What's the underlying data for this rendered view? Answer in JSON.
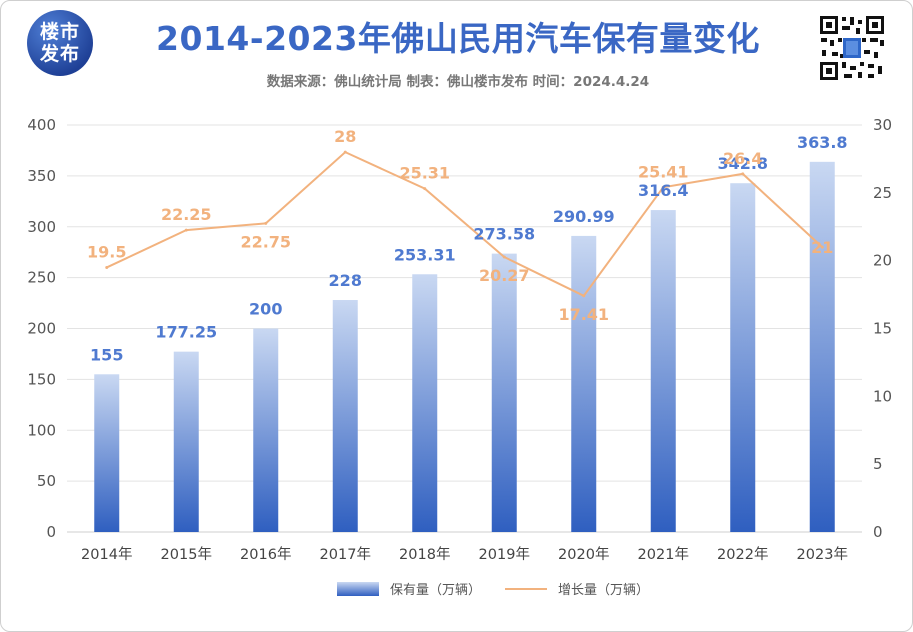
{
  "header": {
    "logo_line1": "楼市",
    "logo_line2": "发布",
    "title": "2014-2023年佛山民用汽车保有量变化",
    "subtitle": "数据来源：佛山统计局 制表：佛山楼市发布 时间：2024.4.24",
    "qr_icon": "qr-code-icon"
  },
  "colors": {
    "bar_top": "#c9d8f2",
    "bar_bottom": "#2f5fc0",
    "bar_label": "#4f7ad0",
    "line": "#f2b27e",
    "grid": "#e3e3e3",
    "title": "#3a67c4"
  },
  "chart_data": {
    "type": "bar+line",
    "categories": [
      "2014年",
      "2015年",
      "2016年",
      "2017年",
      "2018年",
      "2019年",
      "2020年",
      "2021年",
      "2022年",
      "2023年"
    ],
    "series": [
      {
        "name": "保有量（万辆）",
        "type": "bar",
        "axis": "left",
        "values": [
          155,
          177.25,
          200,
          228,
          253.31,
          273.58,
          290.99,
          316.4,
          342.8,
          363.8
        ],
        "labels": [
          "155",
          "177.25",
          "200",
          "228",
          "253.31",
          "273.58",
          "290.99",
          "316.4",
          "342.8",
          "363.8"
        ]
      },
      {
        "name": "增长量（万辆）",
        "type": "line",
        "axis": "right",
        "values": [
          19.5,
          22.25,
          22.75,
          28,
          25.31,
          20.27,
          17.41,
          25.41,
          26.4,
          21
        ],
        "labels": [
          "19.5",
          "22.25",
          "22.75",
          "28",
          "25.31",
          "20.27",
          "17.41",
          "25.41",
          "26.4",
          "21"
        ]
      }
    ],
    "left_axis": {
      "min": 0,
      "max": 400,
      "step": 50,
      "ticks": [
        "0",
        "50",
        "100",
        "150",
        "200",
        "250",
        "300",
        "350",
        "400"
      ]
    },
    "right_axis": {
      "min": 0,
      "max": 30,
      "step": 5,
      "ticks": [
        "0",
        "5",
        "10",
        "15",
        "20",
        "25",
        "30"
      ]
    },
    "grid": true,
    "legend_position": "bottom-center"
  }
}
